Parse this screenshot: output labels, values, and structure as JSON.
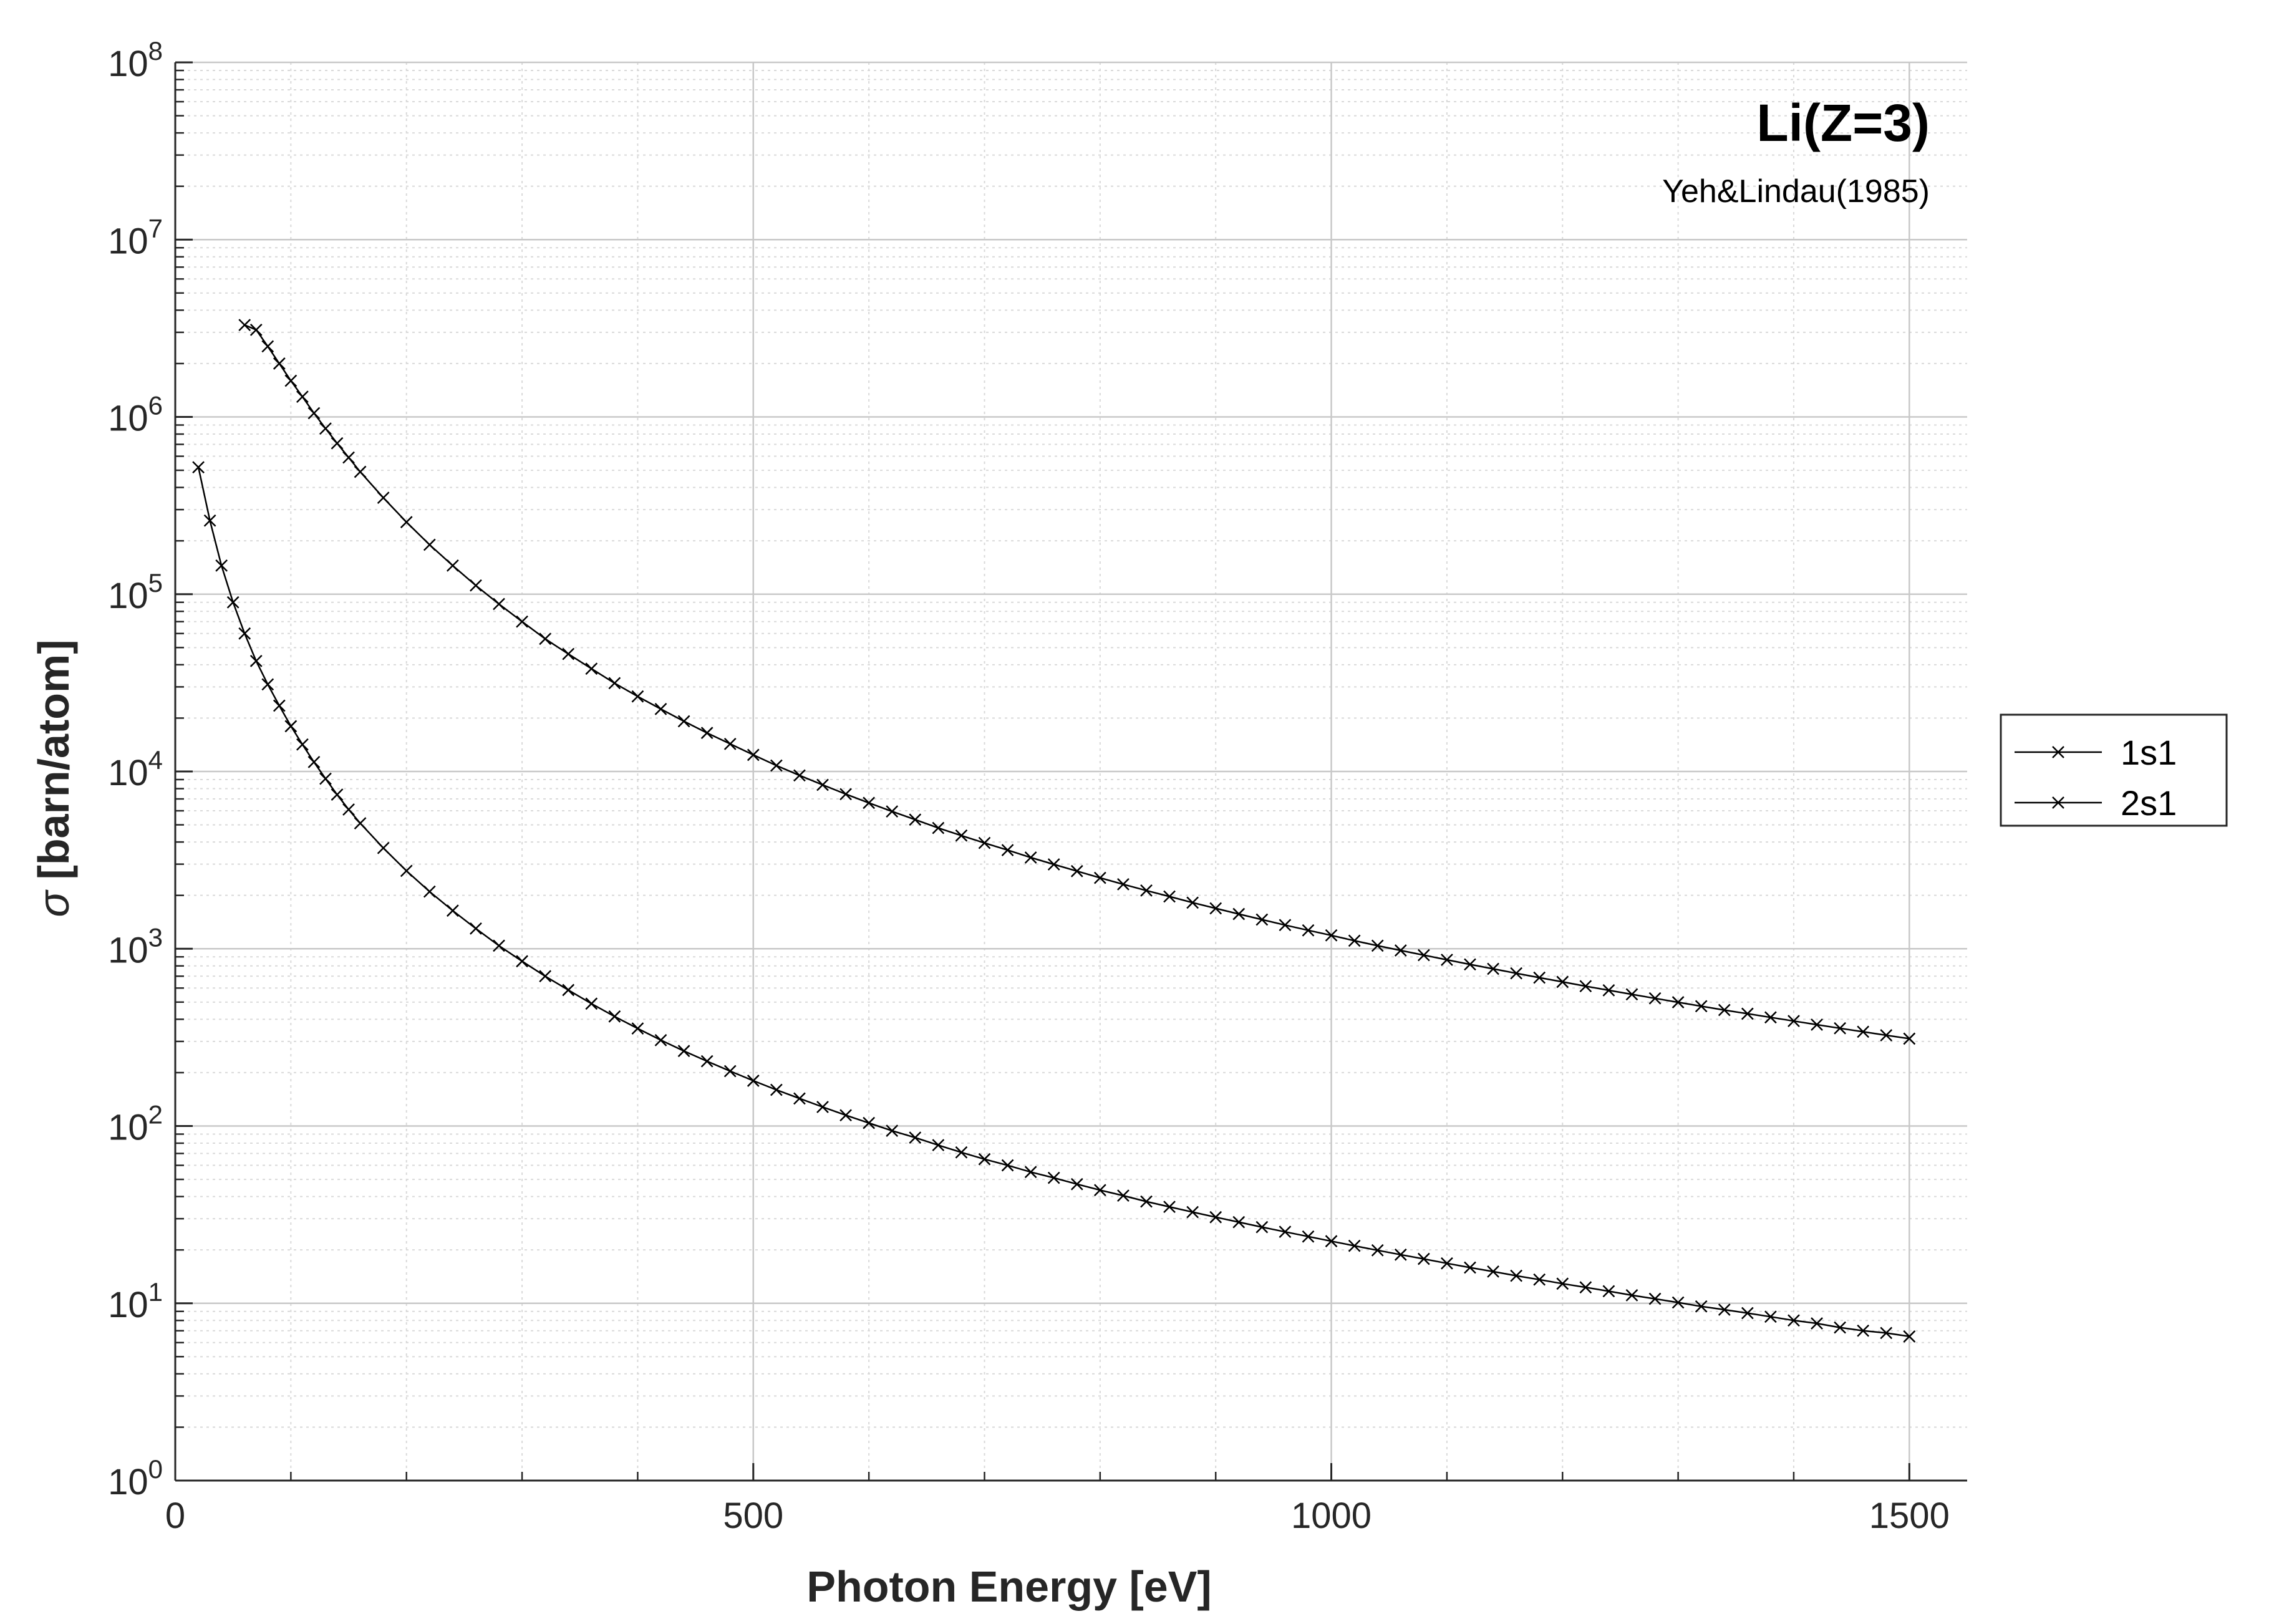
{
  "chart_data": {
    "type": "line",
    "title": "Li(Z=3)",
    "subtitle": "Yeh&Lindau(1985)",
    "xlabel": "Photon Energy [eV]",
    "ylabel_symbol": "σ",
    "ylabel_text": "[barn/atom]",
    "xlim": [
      0,
      1550
    ],
    "ylim": [
      1,
      100000000
    ],
    "yscale": "log",
    "grid": true,
    "legend_position": "outside-right",
    "x_ticks": [
      0,
      500,
      1000,
      1500
    ],
    "y_ticks": [
      {
        "base": "10",
        "exp": "0"
      },
      {
        "base": "10",
        "exp": "1"
      },
      {
        "base": "10",
        "exp": "2"
      },
      {
        "base": "10",
        "exp": "3"
      },
      {
        "base": "10",
        "exp": "4"
      },
      {
        "base": "10",
        "exp": "5"
      },
      {
        "base": "10",
        "exp": "6"
      },
      {
        "base": "10",
        "exp": "7"
      },
      {
        "base": "10",
        "exp": "8"
      }
    ],
    "line_color": "#000000",
    "marker": "x",
    "series": [
      {
        "name": "1s1",
        "x": [
          60,
          70,
          80,
          90,
          100,
          110,
          120,
          130,
          140,
          150,
          160,
          180,
          200,
          220,
          240,
          260,
          280,
          300,
          320,
          340,
          360,
          380,
          400,
          420,
          440,
          460,
          480,
          500,
          520,
          540,
          560,
          580,
          600,
          620,
          640,
          660,
          680,
          700,
          720,
          740,
          760,
          780,
          800,
          820,
          840,
          860,
          880,
          900,
          920,
          940,
          960,
          980,
          1000,
          1020,
          1040,
          1060,
          1080,
          1100,
          1120,
          1140,
          1160,
          1180,
          1200,
          1220,
          1240,
          1260,
          1280,
          1300,
          1320,
          1340,
          1360,
          1380,
          1400,
          1420,
          1440,
          1460,
          1480,
          1500
        ],
        "y": [
          3300000,
          3100000,
          2500000,
          2000000,
          1600000,
          1300000,
          1050000,
          860000,
          710000,
          590000,
          490000,
          350000,
          255000,
          190000,
          145000,
          112000,
          88000,
          70000,
          56000,
          46000,
          38000,
          31500,
          26500,
          22500,
          19200,
          16500,
          14300,
          12400,
          10800,
          9500,
          8400,
          7450,
          6650,
          5950,
          5350,
          4800,
          4350,
          3950,
          3600,
          3270,
          2990,
          2740,
          2510,
          2310,
          2130,
          1970,
          1820,
          1690,
          1570,
          1460,
          1360,
          1270,
          1190,
          1110,
          1040,
          978,
          920,
          866,
          816,
          770,
          727,
          687,
          650,
          615,
          583,
          553,
          525,
          499,
          474,
          451,
          430,
          410,
          391,
          373,
          356,
          340,
          325,
          311
        ]
      },
      {
        "name": "2s1",
        "x": [
          20,
          30,
          40,
          50,
          60,
          70,
          80,
          90,
          100,
          110,
          120,
          130,
          140,
          150,
          160,
          180,
          200,
          220,
          240,
          260,
          280,
          300,
          320,
          340,
          360,
          380,
          400,
          420,
          440,
          460,
          480,
          500,
          520,
          540,
          560,
          580,
          600,
          620,
          640,
          660,
          680,
          700,
          720,
          740,
          760,
          780,
          800,
          820,
          840,
          860,
          880,
          900,
          920,
          940,
          960,
          980,
          1000,
          1020,
          1040,
          1060,
          1080,
          1100,
          1120,
          1140,
          1160,
          1180,
          1200,
          1220,
          1240,
          1260,
          1280,
          1300,
          1320,
          1340,
          1360,
          1380,
          1400,
          1420,
          1440,
          1460,
          1480,
          1500
        ],
        "y": [
          520000,
          260000,
          145000,
          90000,
          60000,
          42000,
          31000,
          23500,
          18000,
          14200,
          11300,
          9100,
          7400,
          6100,
          5100,
          3700,
          2750,
          2100,
          1640,
          1300,
          1040,
          850,
          700,
          585,
          490,
          415,
          355,
          305,
          265,
          232,
          204,
          180,
          160,
          143,
          128,
          115,
          104,
          94,
          86,
          78,
          71,
          65,
          60,
          55,
          51,
          47,
          43.5,
          40.5,
          37.5,
          35,
          32.7,
          30.6,
          28.7,
          26.9,
          25.3,
          23.8,
          22.4,
          21.1,
          19.9,
          18.8,
          17.8,
          16.8,
          15.9,
          15.1,
          14.3,
          13.6,
          12.9,
          12.3,
          11.7,
          11.1,
          10.6,
          10.1,
          9.6,
          9.2,
          8.8,
          8.4,
          8.0,
          7.7,
          7.3,
          7.0,
          6.8,
          6.5
        ]
      }
    ]
  }
}
